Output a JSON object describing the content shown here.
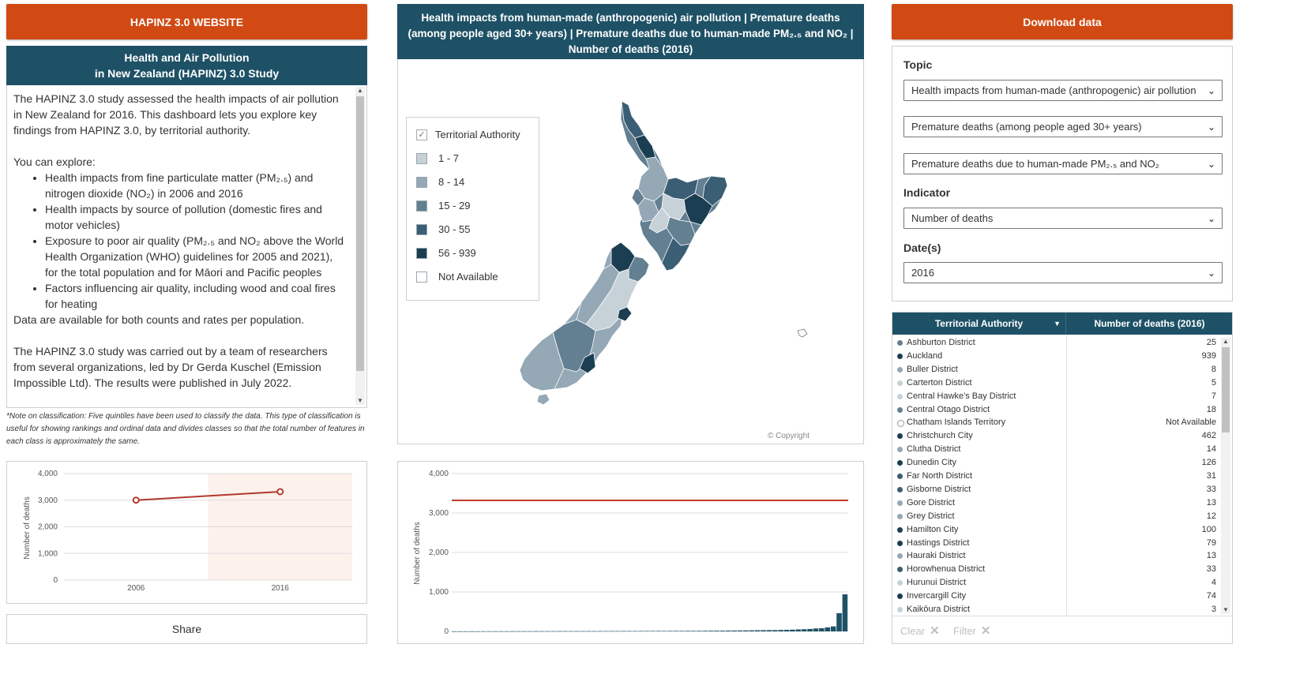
{
  "left": {
    "website_button": "HAPINZ 3.0 WEBSITE",
    "intro_title_line1": "Health and Air Pollution",
    "intro_title_line2": "in New Zealand (HAPINZ) 3.0 Study",
    "intro_p1": "The HAPINZ 3.0 study assessed the health impacts of air pollution in New Zealand for 2016. This dashboard lets you explore key findings from HAPINZ 3.0, by territorial authority.",
    "intro_p2": "You can explore:",
    "intro_bullets": [
      "Health impacts from fine particulate matter (PM₂.₅) and nitrogen dioxide (NO₂) in 2006 and 2016",
      "Health impacts by source of pollution (domestic fires and motor vehicles)",
      "Exposure to poor air quality (PM₂.₅ and NO₂ above the World Health Organization (WHO) guidelines for 2005 and 2021), for the total population and for Māori and Pacific peoples",
      "Factors influencing air quality, including wood and coal fires for heating"
    ],
    "intro_p3": "Data are available for both counts and rates per population.",
    "intro_p4": "The HAPINZ 3.0 study was carried out by a team of researchers from several organizations, led by Dr Gerda Kuschel (Emission Impossible Ltd). The results were published in July 2022.",
    "note": "*Note on classification: Five quintiles have been used to classify the data. This type of classification is useful for showing rankings and ordinal data and divides classes so that the total number of features in each class is approximately the same.",
    "share_button": "Share"
  },
  "map": {
    "title_line1": "Health impacts from human-made (anthropogenic) air pollution | Premature deaths",
    "title_line2": "(among people aged 30+ years) | Premature deaths due to human-made PM₂.₅ and NO₂ |",
    "title_line3": "Number of deaths (2016)",
    "legend_title": "Territorial Authority",
    "legend_items": [
      {
        "label": "1 - 7",
        "color": "#c6d1d8"
      },
      {
        "label": "8 - 14",
        "color": "#94a8b5"
      },
      {
        "label": "15 - 29",
        "color": "#637f92"
      },
      {
        "label": "30 - 55",
        "color": "#3a5e73"
      },
      {
        "label": "56 - 939",
        "color": "#1c3e52"
      },
      {
        "label": "Not Available",
        "color": "#ffffff"
      }
    ],
    "copyright": "© Copyright"
  },
  "right": {
    "download_button": "Download data",
    "topic_label": "Topic",
    "topic_select_1": "Health impacts from human-made (anthropogenic) air pollution",
    "topic_select_2": "Premature deaths (among people aged 30+ years)",
    "topic_select_3": "Premature deaths due to human-made PM₂.₅ and NO₂",
    "indicator_label": "Indicator",
    "indicator_select": "Number of deaths",
    "dates_label": "Date(s)",
    "dates_select": "2016",
    "table_col1": "Territorial Authority",
    "table_col2": "Number of deaths (2016)",
    "table_rows": [
      {
        "name": "Ashburton District",
        "value": "25",
        "color": "#637f92"
      },
      {
        "name": "Auckland",
        "value": "939",
        "color": "#1c3e52"
      },
      {
        "name": "Buller District",
        "value": "8",
        "color": "#94a8b5"
      },
      {
        "name": "Carterton District",
        "value": "5",
        "color": "#c6d1d8"
      },
      {
        "name": "Central Hawke's Bay District",
        "value": "7",
        "color": "#c6d1d8"
      },
      {
        "name": "Central Otago District",
        "value": "18",
        "color": "#637f92"
      },
      {
        "name": "Chatham Islands Territory",
        "value": "Not Available",
        "color": "#ffffff"
      },
      {
        "name": "Christchurch City",
        "value": "462",
        "color": "#1c3e52"
      },
      {
        "name": "Clutha District",
        "value": "14",
        "color": "#94a8b5"
      },
      {
        "name": "Dunedin City",
        "value": "126",
        "color": "#1c3e52"
      },
      {
        "name": "Far North District",
        "value": "31",
        "color": "#3a5e73"
      },
      {
        "name": "Gisborne District",
        "value": "33",
        "color": "#3a5e73"
      },
      {
        "name": "Gore District",
        "value": "13",
        "color": "#94a8b5"
      },
      {
        "name": "Grey District",
        "value": "12",
        "color": "#94a8b5"
      },
      {
        "name": "Hamilton City",
        "value": "100",
        "color": "#1c3e52"
      },
      {
        "name": "Hastings District",
        "value": "79",
        "color": "#1c3e52"
      },
      {
        "name": "Hauraki District",
        "value": "13",
        "color": "#94a8b5"
      },
      {
        "name": "Horowhenua District",
        "value": "33",
        "color": "#3a5e73"
      },
      {
        "name": "Hurunui District",
        "value": "4",
        "color": "#c6d1d8"
      },
      {
        "name": "Invercargill City",
        "value": "74",
        "color": "#1c3e52"
      },
      {
        "name": "Kaikōura District",
        "value": "3",
        "color": "#c6d1d8"
      }
    ],
    "clear_button": "Clear",
    "filter_button": "Filter"
  },
  "chart_data": [
    {
      "type": "line",
      "x": [
        "2006",
        "2016"
      ],
      "series": [
        {
          "values": [
            3000,
            3320
          ],
          "color": "#b03a2e"
        }
      ],
      "ylabel": "Number of deaths",
      "ylim": [
        0,
        4000
      ],
      "yticks": [
        "4,000",
        "3,000",
        "2,000",
        "1,000",
        "0"
      ],
      "highlight_category": "2016"
    },
    {
      "type": "bar",
      "ylabel": "Number of deaths",
      "ylim": [
        0,
        4000
      ],
      "yticks": [
        "4,000",
        "3,000",
        "2,000",
        "1,000",
        "0"
      ],
      "reference_line": 3320,
      "values": [
        1,
        1,
        1,
        2,
        2,
        2,
        3,
        3,
        3,
        3,
        4,
        4,
        4,
        4,
        5,
        5,
        5,
        5,
        6,
        6,
        6,
        6,
        7,
        7,
        7,
        8,
        8,
        8,
        9,
        9,
        10,
        10,
        10,
        11,
        11,
        12,
        12,
        13,
        13,
        13,
        14,
        14,
        15,
        16,
        17,
        18,
        19,
        20,
        22,
        24,
        25,
        27,
        29,
        31,
        33,
        33,
        36,
        40,
        44,
        50,
        55,
        62,
        74,
        79,
        100,
        126,
        462,
        939
      ],
      "bar_color": "#1e5166"
    }
  ]
}
